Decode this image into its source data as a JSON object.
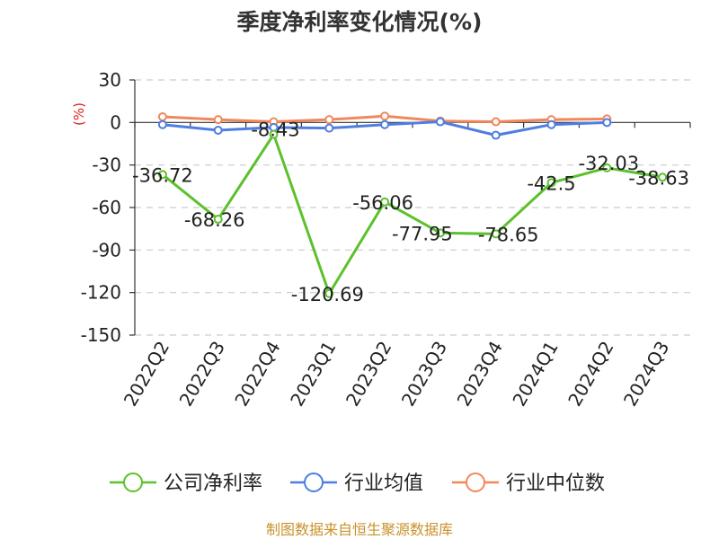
{
  "chart_data": {
    "type": "line",
    "title": "季度净利率变化情况(%)",
    "unit": "(%)",
    "categories": [
      "2022Q2",
      "2022Q3",
      "2022Q4",
      "2023Q1",
      "2023Q2",
      "2023Q3",
      "2023Q4",
      "2024Q1",
      "2024Q2",
      "2024Q3"
    ],
    "ylim": [
      -150,
      30
    ],
    "yticks": [
      30,
      0,
      -30,
      -60,
      -90,
      -120,
      -150
    ],
    "grid": true,
    "legend_position": "bottom",
    "series": [
      {
        "name": "公司净利率",
        "color": "#5cc12c",
        "show_labels": true,
        "labels": [
          "-36.72",
          "-68.26",
          "-8.43",
          "-120.69",
          "-56.06",
          "-77.95",
          "-78.65",
          "-42.5",
          "-32.03",
          "-38.63"
        ],
        "values": [
          -36.72,
          -68.26,
          -8.43,
          -120.69,
          -56.06,
          -77.95,
          -78.65,
          -42.5,
          -32.03,
          -38.63
        ]
      },
      {
        "name": "行业均值",
        "color": "#4d7ee0",
        "show_labels": false,
        "values": [
          -1.5,
          -5.5,
          -3.5,
          -4.0,
          -1.5,
          0.5,
          -9.0,
          -1.5,
          0.0,
          null
        ]
      },
      {
        "name": "行业中位数",
        "color": "#f0885c",
        "show_labels": false,
        "values": [
          4.0,
          2.0,
          0.5,
          2.0,
          4.5,
          1.0,
          0.5,
          2.0,
          2.5,
          null
        ]
      }
    ],
    "source": "制图数据来自恒生聚源数据库"
  }
}
